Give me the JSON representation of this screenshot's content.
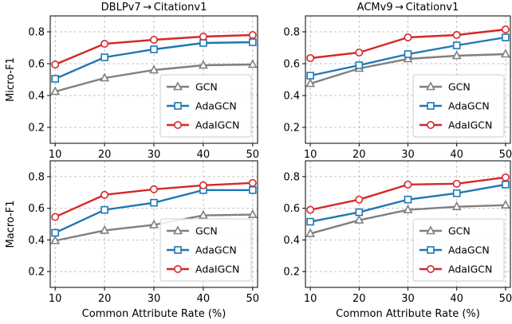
{
  "figure": {
    "ylabels": [
      "Micro-F1",
      "Macro-F1"
    ],
    "xlabel": "Common Attribute Rate (%)"
  },
  "chart_data": [
    {
      "type": "line",
      "title": "DBLPv7 → Citationv1",
      "xlabel": "",
      "ylabel": "Micro-F1",
      "x": [
        10,
        20,
        30,
        40,
        50
      ],
      "xlim": [
        9,
        51
      ],
      "ylim": [
        0.1,
        0.9
      ],
      "yticks": [
        0.2,
        0.4,
        0.6,
        0.8
      ],
      "xticks": [
        10,
        20,
        30,
        40,
        50
      ],
      "grid": true,
      "legend_position": "lower-right",
      "series": [
        {
          "name": "GCN",
          "color": "#7f7f7f",
          "marker": "triangle",
          "values": [
            0.425,
            0.51,
            0.56,
            0.59,
            0.595
          ]
        },
        {
          "name": "AdaGCN",
          "color": "#1f77b4",
          "marker": "square",
          "values": [
            0.505,
            0.64,
            0.69,
            0.73,
            0.735
          ]
        },
        {
          "name": "AdaIGCN",
          "color": "#d62728",
          "marker": "circle",
          "values": [
            0.595,
            0.725,
            0.75,
            0.77,
            0.78
          ]
        }
      ]
    },
    {
      "type": "line",
      "title": "ACMv9 → Citationv1",
      "xlabel": "",
      "ylabel": "",
      "x": [
        10,
        20,
        30,
        40,
        50
      ],
      "xlim": [
        9,
        51
      ],
      "ylim": [
        0.1,
        0.9
      ],
      "yticks": [
        0.2,
        0.4,
        0.6,
        0.8
      ],
      "xticks": [
        10,
        20,
        30,
        40,
        50
      ],
      "grid": true,
      "legend_position": "lower-right",
      "series": [
        {
          "name": "GCN",
          "color": "#7f7f7f",
          "marker": "triangle",
          "values": [
            0.475,
            0.57,
            0.63,
            0.65,
            0.66
          ]
        },
        {
          "name": "AdaGCN",
          "color": "#1f77b4",
          "marker": "square",
          "values": [
            0.525,
            0.59,
            0.66,
            0.715,
            0.765
          ]
        },
        {
          "name": "AdaIGCN",
          "color": "#d62728",
          "marker": "circle",
          "values": [
            0.635,
            0.67,
            0.765,
            0.78,
            0.815
          ]
        }
      ]
    },
    {
      "type": "line",
      "title": "",
      "xlabel": "Common Attribute Rate (%)",
      "ylabel": "Macro-F1",
      "x": [
        10,
        20,
        30,
        40,
        50
      ],
      "xlim": [
        9,
        51
      ],
      "ylim": [
        0.1,
        0.9
      ],
      "yticks": [
        0.2,
        0.4,
        0.6,
        0.8
      ],
      "xticks": [
        10,
        20,
        30,
        40,
        50
      ],
      "grid": true,
      "legend_position": "lower-right",
      "series": [
        {
          "name": "GCN",
          "color": "#7f7f7f",
          "marker": "triangle",
          "values": [
            0.395,
            0.46,
            0.495,
            0.555,
            0.56
          ]
        },
        {
          "name": "AdaGCN",
          "color": "#1f77b4",
          "marker": "square",
          "values": [
            0.445,
            0.59,
            0.635,
            0.715,
            0.715
          ]
        },
        {
          "name": "AdaIGCN",
          "color": "#d62728",
          "marker": "circle",
          "values": [
            0.545,
            0.685,
            0.72,
            0.745,
            0.76
          ]
        }
      ]
    },
    {
      "type": "line",
      "title": "",
      "xlabel": "Common Attribute Rate (%)",
      "ylabel": "",
      "x": [
        10,
        20,
        30,
        40,
        50
      ],
      "xlim": [
        9,
        51
      ],
      "ylim": [
        0.1,
        0.9
      ],
      "yticks": [
        0.2,
        0.4,
        0.6,
        0.8
      ],
      "xticks": [
        10,
        20,
        30,
        40,
        50
      ],
      "grid": true,
      "legend_position": "lower-right",
      "series": [
        {
          "name": "GCN",
          "color": "#7f7f7f",
          "marker": "triangle",
          "values": [
            0.44,
            0.525,
            0.59,
            0.61,
            0.62
          ]
        },
        {
          "name": "AdaGCN",
          "color": "#1f77b4",
          "marker": "square",
          "values": [
            0.515,
            0.575,
            0.655,
            0.695,
            0.75
          ]
        },
        {
          "name": "AdaIGCN",
          "color": "#d62728",
          "marker": "circle",
          "values": [
            0.59,
            0.655,
            0.75,
            0.755,
            0.795
          ]
        }
      ]
    }
  ]
}
